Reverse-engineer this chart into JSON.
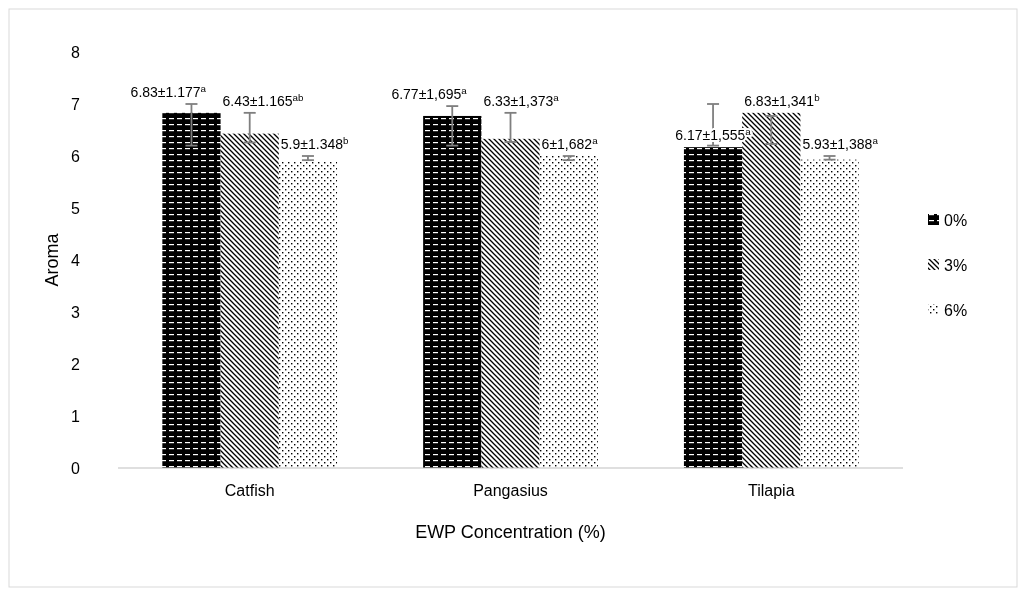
{
  "chart_data": {
    "type": "bar",
    "xlabel": "EWP Concentration (%)",
    "ylabel": "Aroma",
    "categories": [
      "Catfish",
      "Pangasius",
      "Tilapia"
    ],
    "series": [
      {
        "name": "0%",
        "color": "#000000",
        "values": [
          6.83,
          6.77,
          6.17
        ],
        "errors": [
          [
            6.2,
            7.0
          ],
          [
            6.2,
            6.96
          ],
          [
            6.2,
            7.0
          ]
        ],
        "value_labels": [
          "6.83±1.177$^{a}$",
          "6.77±1,695$^{a}$",
          "6.17±1,555$^{a}$"
        ]
      },
      {
        "name": "3%",
        "color": "#000000",
        "values": [
          6.43,
          6.33,
          6.83
        ],
        "errors": [
          [
            6.26,
            6.83
          ],
          [
            6.27,
            6.83
          ],
          [
            6.23,
            6.77
          ]
        ],
        "value_labels": [
          "6.43±1.165$^{ab}$",
          "6.33±1,373$^{a}$",
          "6.83±1,341$^{b}$"
        ]
      },
      {
        "name": "6%",
        "color": "#000000",
        "values": [
          5.9,
          6.0,
          5.93
        ],
        "errors": [
          [
            5.92,
            6.0
          ],
          [
            5.92,
            6.0
          ],
          [
            5.93,
            6.0
          ]
        ],
        "value_labels": [
          "5.9±1.348$^{b}$",
          "6±1,682$^{a}$",
          "5.93±1,388$^{a}$"
        ]
      }
    ],
    "ylim": [
      0,
      8
    ],
    "yticks": [
      0,
      1,
      2,
      3,
      4,
      5,
      6,
      7,
      8
    ],
    "grid": false,
    "legend": "right"
  }
}
